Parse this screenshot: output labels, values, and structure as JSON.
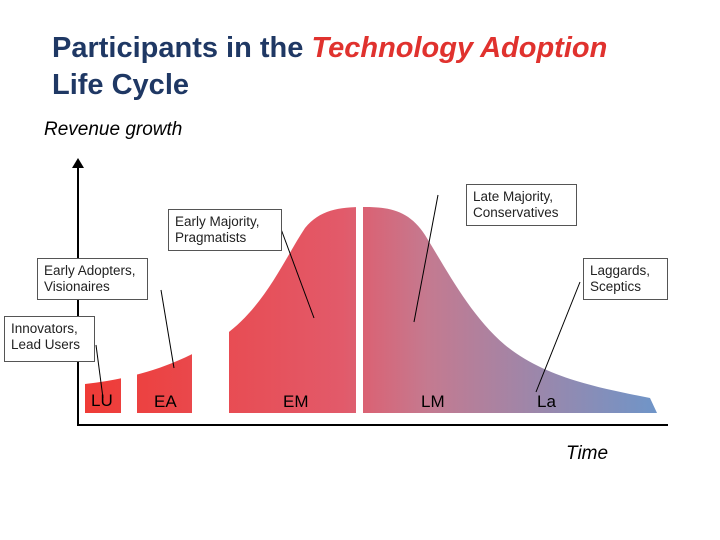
{
  "title": {
    "prefix": "Participants in the ",
    "accent": "Technology Adoption",
    "suffix": "Life Cycle"
  },
  "axes": {
    "y_label": "Revenue growth",
    "x_label": "Time"
  },
  "segments": [
    {
      "code": "LU",
      "callout": "Innovators,\nLead Users"
    },
    {
      "code": "EA",
      "callout": "Early Adopters,\nVisionaires"
    },
    {
      "code": "EM",
      "callout": "Early Majority,\nPragmatists"
    },
    {
      "code": "LM",
      "callout": "Late Majority,\nConservatives"
    },
    {
      "code": "La",
      "callout": "Laggards,\nSceptics"
    }
  ],
  "colors": {
    "title": "#1f3864",
    "accent": "#e0322e",
    "curve_start": "#ef3b36",
    "curve_end": "#6f95c8"
  }
}
